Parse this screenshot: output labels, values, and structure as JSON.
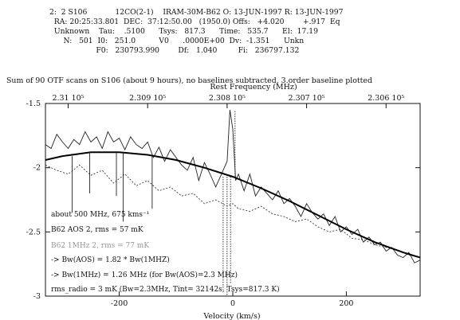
{
  "header": {
    "lines": [
      "2:  2 S106            12CO(2-1)    IRAM-30M-B62 O: 13-JUN-1997 R: 13-JUN-1997",
      "  RA: 20:25:33.801  DEC:  37:12:50.00   (1950.0) Offs:   +4.020        +.917  Eq",
      "  Unknown    Tau:    .5100      Tsys:   817.3      Time:   535.7      El:  17.19",
      "      N:   501  I0:   251.0          V0      .0000E+00  Dv:  -1.351      Unkn",
      "                    F0:   230793.990        Df:   1.040         Fi:   236797.132"
    ]
  },
  "chart_data": {
    "type": "line",
    "title": "Sum of 90 OTF scans on S106 (about 9 hours), no baselines subtracted, 3.order baseline plotted",
    "xlabel": "Velocity (km/s)",
    "x2label": "Rest Frequency (MHz)",
    "xlim": [
      -330,
      330
    ],
    "ylim": [
      -3,
      -1.5
    ],
    "x_ticks": [
      -200,
      0,
      200
    ],
    "y_ticks": [
      -1.5,
      -2,
      -2.5,
      -3
    ],
    "top_ticks": [
      "2.31 10⁵",
      "2.309 10⁵",
      "2.308 10⁵",
      "2.307 10⁵",
      "2.306 10⁵"
    ],
    "top_tick_velocity": [
      -290,
      -150,
      -10,
      130,
      270
    ],
    "baseline_fit": {
      "x": [
        -330,
        -300,
        -250,
        -200,
        -150,
        -100,
        -50,
        0,
        50,
        100,
        150,
        200,
        250,
        300,
        330
      ],
      "y": [
        -1.94,
        -1.91,
        -1.88,
        -1.88,
        -1.9,
        -1.94,
        -2.0,
        -2.07,
        -2.16,
        -2.26,
        -2.37,
        -2.48,
        -2.58,
        -2.66,
        -2.7
      ]
    },
    "series": [
      {
        "style": "solid",
        "x": [
          -330,
          -320,
          -310,
          -300,
          -290,
          -280,
          -270,
          -260,
          -250,
          -240,
          -230,
          -220,
          -210,
          -200,
          -190,
          -180,
          -170,
          -160,
          -150,
          -140,
          -130,
          -120,
          -110,
          -100,
          -90,
          -80,
          -70,
          -60,
          -50,
          -40,
          -30,
          -20,
          -10,
          -5,
          0,
          5,
          10,
          20,
          30,
          40,
          50,
          60,
          70,
          80,
          90,
          100,
          110,
          120,
          130,
          140,
          150,
          160,
          170,
          180,
          190,
          200,
          210,
          220,
          230,
          240,
          250,
          260,
          270,
          280,
          290,
          300,
          310,
          320,
          330
        ],
        "y": [
          -1.82,
          -1.85,
          -1.74,
          -1.8,
          -1.85,
          -1.78,
          -1.82,
          -1.72,
          -1.8,
          -1.76,
          -1.85,
          -1.72,
          -1.8,
          -1.77,
          -1.86,
          -1.76,
          -1.82,
          -1.85,
          -1.8,
          -1.92,
          -1.84,
          -1.95,
          -1.86,
          -1.92,
          -1.98,
          -2.02,
          -1.92,
          -2.1,
          -1.96,
          -2.05,
          -2.15,
          -2.05,
          -1.95,
          -1.55,
          -1.7,
          -2.1,
          -2.05,
          -2.18,
          -2.05,
          -2.22,
          -2.15,
          -2.2,
          -2.25,
          -2.18,
          -2.28,
          -2.24,
          -2.3,
          -2.38,
          -2.28,
          -2.35,
          -2.4,
          -2.36,
          -2.45,
          -2.38,
          -2.5,
          -2.46,
          -2.52,
          -2.48,
          -2.58,
          -2.54,
          -2.6,
          -2.58,
          -2.65,
          -2.62,
          -2.68,
          -2.7,
          -2.66,
          -2.74,
          -2.72
        ]
      },
      {
        "style": "dashed",
        "x": [
          -330,
          -310,
          -290,
          -270,
          -250,
          -230,
          -210,
          -190,
          -170,
          -150,
          -130,
          -110,
          -90,
          -70,
          -50,
          -30,
          -10,
          0,
          10,
          30,
          50,
          70,
          90,
          110,
          130,
          150,
          170,
          190,
          210,
          230,
          250,
          270,
          290,
          310,
          330
        ],
        "y": [
          -1.98,
          -2.02,
          -2.05,
          -1.98,
          -2.06,
          -2.02,
          -2.12,
          -2.05,
          -2.14,
          -2.1,
          -2.18,
          -2.15,
          -2.22,
          -2.2,
          -2.28,
          -2.25,
          -2.3,
          -2.28,
          -2.32,
          -2.34,
          -2.3,
          -2.36,
          -2.38,
          -2.42,
          -2.4,
          -2.46,
          -2.5,
          -2.48,
          -2.55,
          -2.56,
          -2.6,
          -2.62,
          -2.64,
          -2.68,
          -2.7
        ]
      }
    ],
    "spikes": [
      {
        "x": -283,
        "y": -2.35
      },
      {
        "x": -252,
        "y": -2.2
      },
      {
        "x": -205,
        "y": -2.22
      },
      {
        "x": -193,
        "y": -2.42
      },
      {
        "x": -142,
        "y": -2.32
      },
      {
        "x": -17,
        "y": -2.95
      },
      {
        "x": -10,
        "y": -3.0
      },
      {
        "x": -4,
        "y": -2.9
      },
      {
        "x": 4,
        "y": -1.55
      }
    ],
    "annotations": [
      "about 500 MHz, 675 kms⁻¹",
      "B62 AOS 2, rms = 57 mK",
      "B62 1MHz 2, rms = 77 mK",
      "-> Bw(AOS) = 1.82 * Bw(1MHZ)",
      "-> Bw(1MHz) = 1.26 MHz (for Bw(AOS)=2.3 MHz)",
      "rms_radio = 3 mK (Bw=2.3MHz, Tint= 32142s, Tsys=817.3 K)"
    ]
  }
}
